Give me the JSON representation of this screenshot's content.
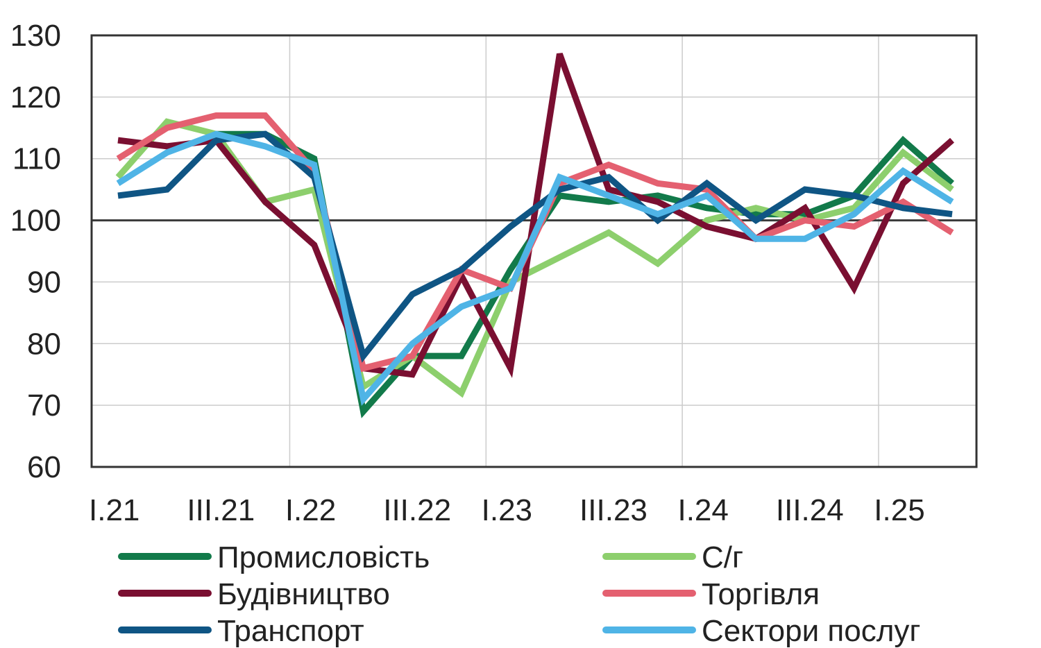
{
  "chart_data": {
    "type": "line",
    "title": "",
    "xlabel": "",
    "ylabel": "",
    "ylim": [
      60,
      130
    ],
    "yticks": [
      60,
      70,
      80,
      90,
      100,
      110,
      120,
      130
    ],
    "reference_line": 100,
    "grid": true,
    "legend_position": "bottom",
    "x_tick_labels": [
      "I.21",
      "III.21",
      "I.22",
      "III.22",
      "I.23",
      "III.23",
      "I.24",
      "III.24",
      "I.25"
    ],
    "x": [
      "I.21",
      "II.21",
      "III.21",
      "IV.21",
      "I.22",
      "II.22",
      "III.22",
      "IV.22",
      "I.23",
      "II.23",
      "III.23",
      "IV.23",
      "I.24",
      "II.24",
      "III.24",
      "IV.24",
      "I.25",
      "II.25"
    ],
    "series": [
      {
        "name": "Промисловість",
        "color": "#127a4a",
        "values": [
          null,
          null,
          114,
          114,
          110,
          69,
          78,
          78,
          92,
          104,
          103,
          104,
          102,
          101,
          101,
          104,
          113,
          106
        ]
      },
      {
        "name": "С/г",
        "color": "#8dcf6d",
        "values": [
          107,
          116,
          114,
          103,
          105,
          73,
          78,
          72,
          90,
          94,
          98,
          93,
          100,
          102,
          100,
          102,
          111,
          105
        ]
      },
      {
        "name": "Будівництво",
        "color": "#7a0f31",
        "values": [
          113,
          112,
          113,
          103,
          96,
          76,
          75,
          91,
          76,
          127,
          105,
          103,
          99,
          97,
          102,
          89,
          106,
          113
        ]
      },
      {
        "name": "Торгівля",
        "color": "#e46070",
        "values": [
          110,
          115,
          117,
          117,
          108,
          76,
          78,
          92,
          89,
          106,
          109,
          106,
          105,
          97,
          100,
          99,
          103,
          98
        ]
      },
      {
        "name": "Транспорт",
        "color": "#0f5584",
        "values": [
          104,
          105,
          113,
          114,
          107,
          78,
          88,
          92,
          99,
          105,
          107,
          100,
          106,
          100,
          105,
          104,
          102,
          101
        ]
      },
      {
        "name": "Сектори послуг",
        "color": "#4fb4e6",
        "values": [
          106,
          111,
          114,
          112,
          109,
          71,
          80,
          86,
          89,
          107,
          104,
          101,
          104,
          97,
          97,
          101,
          108,
          103
        ]
      }
    ]
  }
}
